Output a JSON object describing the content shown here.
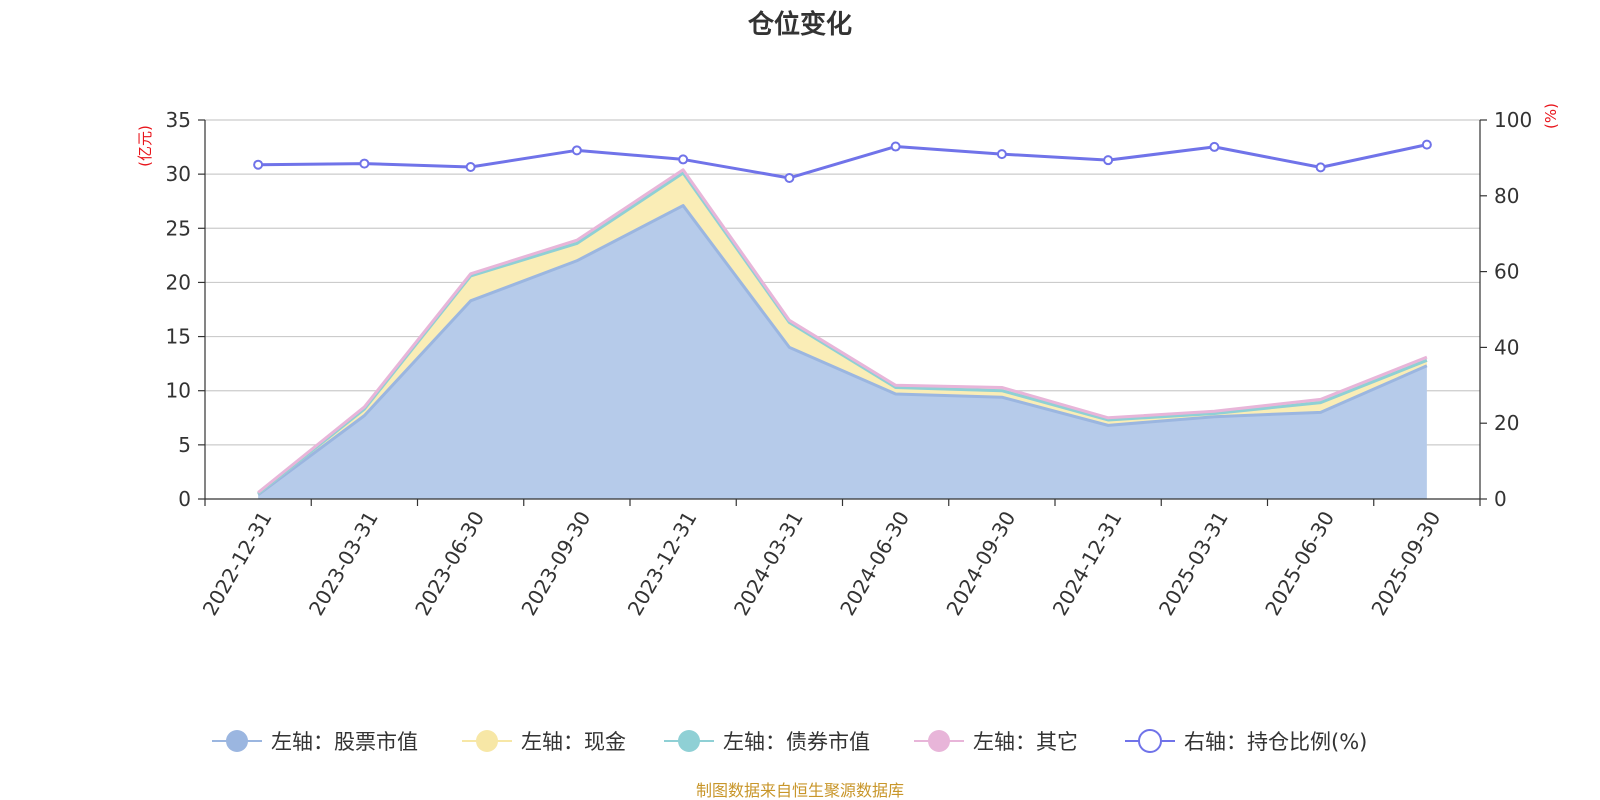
{
  "chart_data": {
    "type": "area",
    "title": "仓位变化",
    "left_unit": "(亿元)",
    "right_unit": "(%)",
    "categories": [
      "2022-12-31",
      "2023-03-31",
      "2023-06-30",
      "2023-09-30",
      "2023-12-31",
      "2024-03-31",
      "2024-06-30",
      "2024-09-30",
      "2024-12-31",
      "2025-03-31",
      "2025-06-30",
      "2025-09-30"
    ],
    "y_left": {
      "min": 0,
      "max": 35,
      "ticks": [
        0,
        5,
        10,
        15,
        20,
        25,
        30,
        35
      ]
    },
    "y_right": {
      "min": 0,
      "max": 100,
      "ticks": [
        0,
        20,
        40,
        60,
        80,
        100
      ]
    },
    "grid": true,
    "legend_position": "bottom",
    "stacked_series": [
      {
        "name": "左轴：股票市值",
        "color": "#9bb6e0",
        "fill": "#b6cbea",
        "values": [
          0.4,
          7.7,
          18.3,
          22.0,
          27.1,
          14.0,
          9.7,
          9.4,
          6.8,
          7.6,
          8.0,
          12.3
        ]
      },
      {
        "name": "左轴：现金",
        "color": "#f7e7a6",
        "fill": "#faedb6",
        "values": [
          0.1,
          0.6,
          2.3,
          1.6,
          3.0,
          2.3,
          0.6,
          0.6,
          0.5,
          0.3,
          0.9,
          0.5
        ]
      },
      {
        "name": "左轴：债券市值",
        "color": "#8fd0d5",
        "fill": "#b3dfe3",
        "values": [
          0,
          0,
          0,
          0,
          0,
          0,
          0,
          0,
          0,
          0,
          0,
          0
        ]
      },
      {
        "name": "左轴：其它",
        "color": "#e8b5d9",
        "fill": "#efc9e3",
        "values": [
          0.1,
          0.2,
          0.2,
          0.3,
          0.3,
          0.2,
          0.2,
          0.3,
          0.2,
          0.2,
          0.3,
          0.3
        ]
      }
    ],
    "line_series": {
      "name": "右轴：持仓比例(%)",
      "color": "#7073e9",
      "axis": "right",
      "values": [
        88.2,
        88.5,
        87.6,
        92.0,
        89.6,
        84.7,
        93.0,
        91.0,
        89.4,
        92.9,
        87.5,
        93.5
      ]
    },
    "source": "制图数据来自恒生聚源数据库"
  }
}
